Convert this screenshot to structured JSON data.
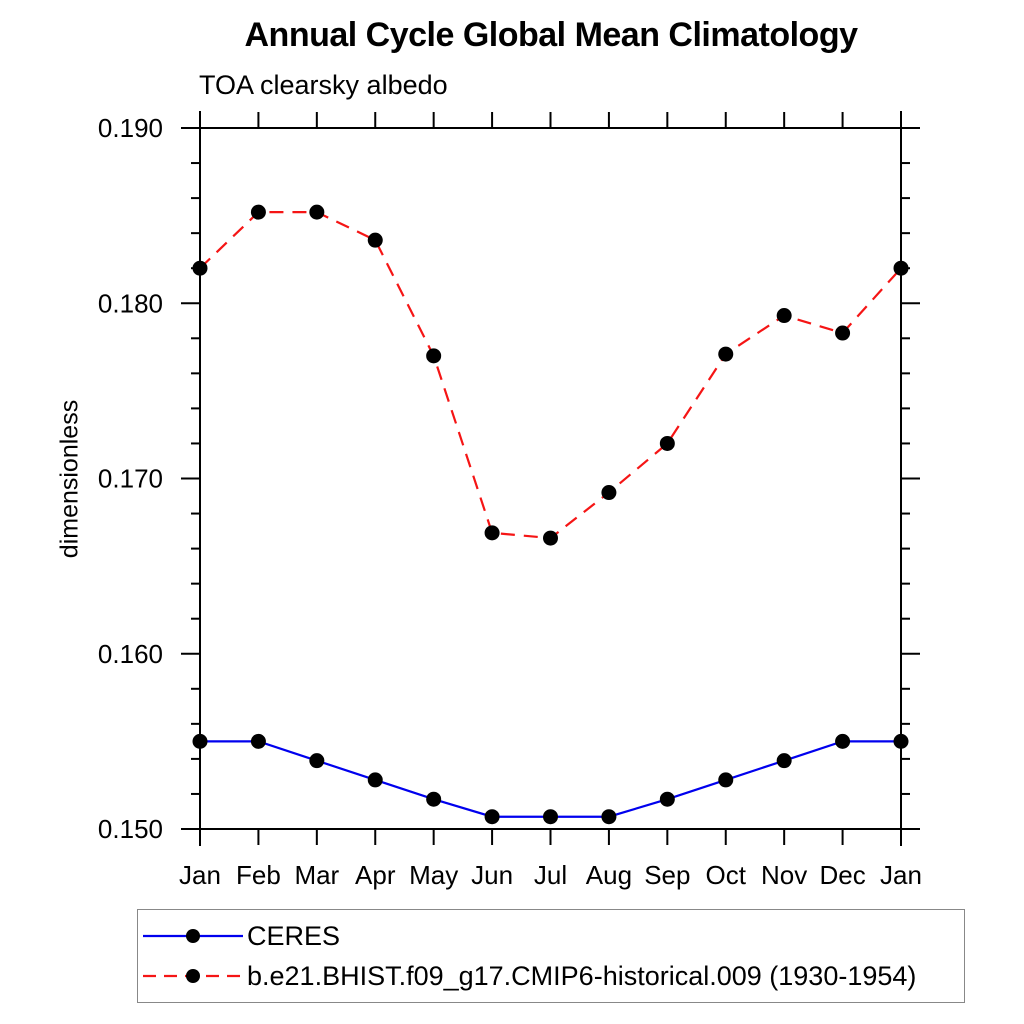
{
  "chart_data": {
    "type": "line",
    "title": "Annual Cycle Global Mean Climatology",
    "subtitle": "TOA clearsky albedo",
    "xlabel": "",
    "ylabel": "dimensionless",
    "categories": [
      "Jan",
      "Feb",
      "Mar",
      "Apr",
      "May",
      "Jun",
      "Jul",
      "Aug",
      "Sep",
      "Oct",
      "Nov",
      "Dec",
      "Jan"
    ],
    "series": [
      {
        "name": "CERES",
        "color": "#0000ee",
        "style": "solid",
        "marker": "circle",
        "marker_color": "#000000",
        "values": [
          0.155,
          0.155,
          0.1539,
          0.1528,
          0.1517,
          0.1507,
          0.1507,
          0.1507,
          0.1517,
          0.1528,
          0.1539,
          0.155,
          0.155
        ]
      },
      {
        "name": "b.e21.BHIST.f09_g17.CMIP6-historical.009 (1930-1954)",
        "color": "#f51515",
        "style": "dashed",
        "marker": "circle",
        "marker_color": "#000000",
        "values": [
          0.182,
          0.1852,
          0.1852,
          0.1836,
          0.177,
          0.1669,
          0.1666,
          0.1692,
          0.172,
          0.1771,
          0.1793,
          0.1783,
          0.182
        ]
      }
    ],
    "ylim": [
      0.15,
      0.19
    ],
    "ytick_values": [
      0.15,
      0.16,
      0.17,
      0.18,
      0.19
    ],
    "ytick_labels": [
      "0.150",
      "0.160",
      "0.170",
      "0.180",
      "0.190"
    ],
    "y_minor_step": 0.002,
    "grid": false,
    "legend_position": "bottom-left-box",
    "axis_color": "#000000",
    "background_color": "#ffffff"
  }
}
